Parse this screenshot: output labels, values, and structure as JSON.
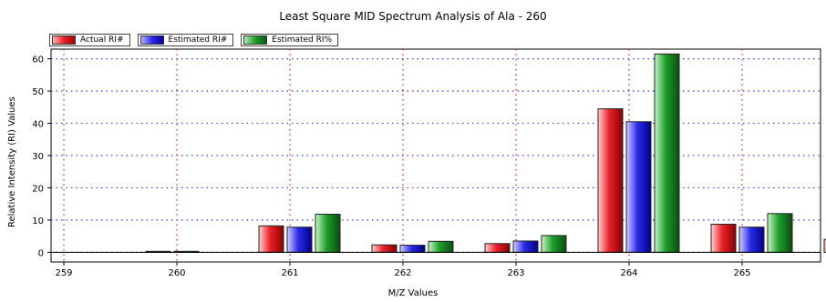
{
  "chart_data": {
    "type": "bar",
    "title": "Least Square MID Spectrum Analysis of Ala - 260",
    "xlabel": "M/Z Values",
    "ylabel": "Relative Intensity (RI) Values",
    "categories": [
      "259",
      "260",
      "261",
      "262",
      "263",
      "264",
      "265"
    ],
    "ylim": [
      -3,
      63
    ],
    "yticks": [
      0,
      10,
      20,
      30,
      40,
      50,
      60
    ],
    "grid": true,
    "legend_position": "top-left",
    "series": [
      {
        "name": "Actual RI#",
        "color": "#e8222a",
        "values": [
          0.3,
          8.2,
          2.3,
          2.7,
          44.5,
          8.7,
          4.0
        ]
      },
      {
        "name": "Estimated RI#",
        "color": "#2a2ae8",
        "values": [
          0.3,
          7.8,
          2.2,
          3.5,
          40.5,
          7.8,
          3.6
        ]
      },
      {
        "name": "Estimated RI%",
        "color": "#1e9e2a",
        "values": [
          null,
          11.8,
          3.4,
          5.2,
          61.5,
          12.0,
          5.2
        ]
      }
    ]
  }
}
